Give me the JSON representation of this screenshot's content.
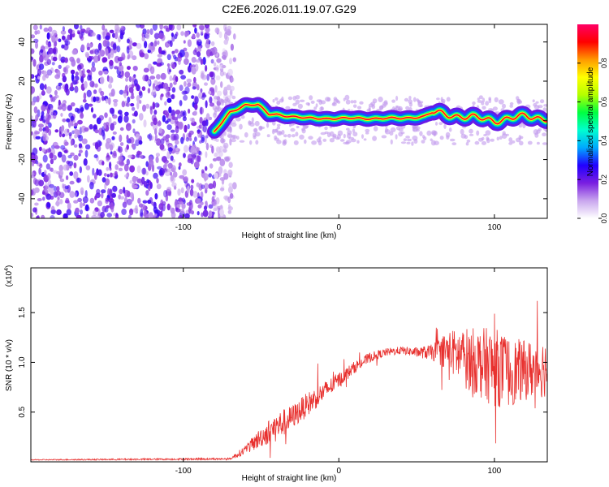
{
  "title": "C2E6.2026.011.19.07.G29",
  "chart_data": [
    {
      "type": "heatmap",
      "xlabel": "Height of straight line (km)",
      "ylabel": "Frequency (Hz)",
      "xlim": [
        -198,
        134
      ],
      "ylim": [
        -50,
        49
      ],
      "xticks": [
        -100,
        0,
        100
      ],
      "yticks": [
        -40,
        -20,
        0,
        20,
        40
      ],
      "colorbar": {
        "label": "Normalized spectral amplitude",
        "range": [
          0,
          1
        ],
        "ticks": [
          "0.0",
          "0.2",
          "0.4",
          "0.6",
          "0.8"
        ],
        "tick_values": [
          0,
          0.2,
          0.4,
          0.6,
          0.8
        ],
        "colors": [
          "#ffffff",
          "#c9a6ee",
          "#7a1fe0",
          "#2200ff",
          "#00a8ff",
          "#00ffd0",
          "#00ff40",
          "#b4ff00",
          "#ffff00",
          "#ff9900",
          "#ff0000",
          "#ff0066"
        ]
      },
      "description_points": {
        "noise_region_x": [
          -198,
          -75
        ],
        "ridge": {
          "x": [
            -80,
            -70,
            -60,
            -52,
            -45,
            -40,
            -30,
            -20,
            0,
            20,
            40,
            55,
            60,
            80,
            100,
            120,
            134
          ],
          "y": [
            -6,
            4,
            8,
            8,
            3,
            3,
            2,
            1,
            1,
            1,
            1,
            2,
            4,
            2,
            0,
            2,
            1
          ]
        }
      }
    },
    {
      "type": "line",
      "xlabel": "Height of straight line (km)",
      "ylabel": "SNR (10 * v/v)",
      "yscale_label": "(x10",
      "yscale_exp": "4",
      "yscale_close": ")",
      "xlim": [
        -198,
        134
      ],
      "ylim": [
        0,
        1.95
      ],
      "xticks": [
        -100,
        0,
        100
      ],
      "yticks": [
        "0.5",
        "1.0",
        "1.5"
      ],
      "ytick_values": [
        0.5,
        1.0,
        1.5
      ],
      "color": "#e8312f",
      "series_envelope": {
        "x": [
          -198,
          -70,
          -60,
          -50,
          -40,
          -30,
          -20,
          -10,
          0,
          10,
          20,
          30,
          40,
          50,
          60,
          70,
          80,
          90,
          100,
          110,
          120,
          134
        ],
        "y": [
          0.02,
          0.03,
          0.12,
          0.25,
          0.35,
          0.45,
          0.58,
          0.7,
          0.82,
          0.95,
          1.05,
          1.1,
          1.12,
          1.1,
          1.1,
          1.12,
          1.05,
          1.0,
          0.95,
          0.9,
          0.92,
          0.95
        ],
        "amplitude": [
          0.005,
          0.01,
          0.05,
          0.1,
          0.15,
          0.12,
          0.12,
          0.1,
          0.08,
          0.06,
          0.05,
          0.04,
          0.04,
          0.05,
          0.08,
          0.2,
          0.3,
          0.35,
          0.4,
          0.35,
          0.3,
          0.3
        ]
      }
    }
  ]
}
